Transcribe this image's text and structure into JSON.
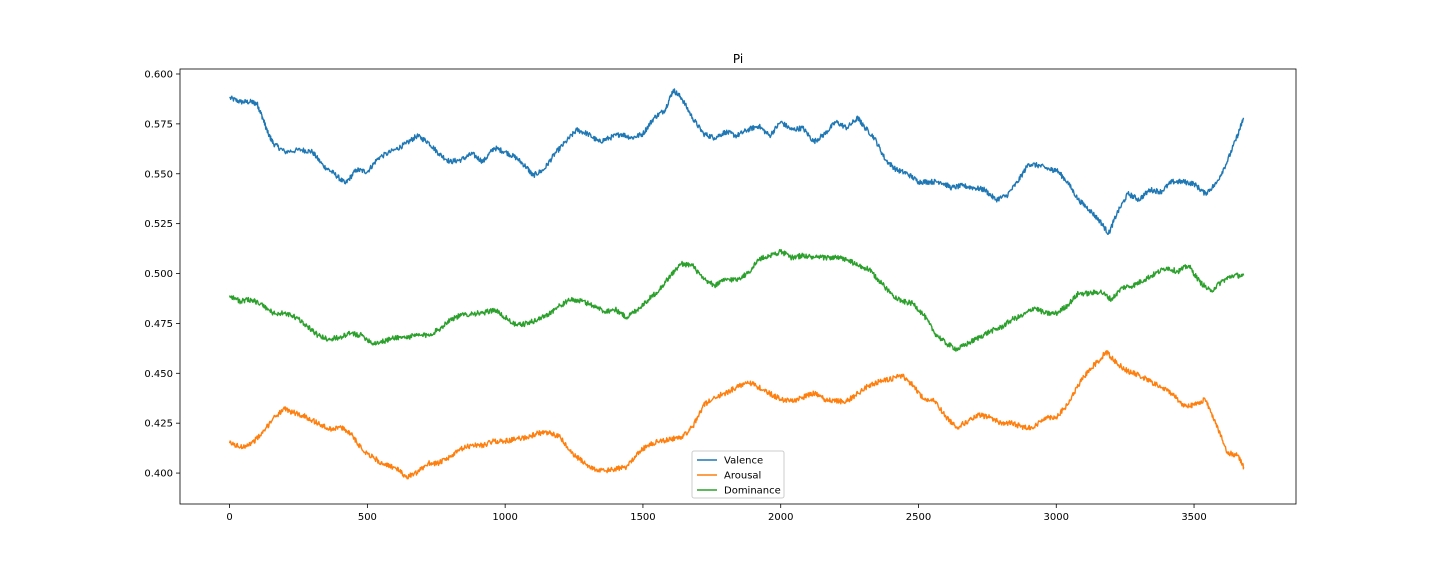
{
  "chart_data": {
    "type": "line",
    "title": "Pi",
    "xlabel": "",
    "ylabel": "",
    "xlim": [
      -180,
      3870
    ],
    "ylim": [
      0.3845,
      0.6025
    ],
    "xticks": [
      0,
      500,
      1000,
      1500,
      2000,
      2500,
      3000,
      3500
    ],
    "xtick_labels": [
      "0",
      "500",
      "1000",
      "1500",
      "2000",
      "2500",
      "3000",
      "3500"
    ],
    "yticks": [
      0.4,
      0.425,
      0.45,
      0.475,
      0.5,
      0.525,
      0.55,
      0.575,
      0.6
    ],
    "ytick_labels": [
      "0.400",
      "0.425",
      "0.450",
      "0.475",
      "0.500",
      "0.525",
      "0.550",
      "0.575",
      "0.600"
    ],
    "grid": false,
    "legend_position": "bottom-center",
    "series": [
      {
        "name": "Valence",
        "color": "#1f77b4",
        "points": [
          [
            0,
            0.588
          ],
          [
            40,
            0.586
          ],
          [
            80,
            0.586
          ],
          [
            100,
            0.585
          ],
          [
            120,
            0.578
          ],
          [
            140,
            0.57
          ],
          [
            160,
            0.565
          ],
          [
            200,
            0.561
          ],
          [
            260,
            0.562
          ],
          [
            300,
            0.561
          ],
          [
            340,
            0.554
          ],
          [
            380,
            0.55
          ],
          [
            420,
            0.545
          ],
          [
            460,
            0.552
          ],
          [
            500,
            0.551
          ],
          [
            540,
            0.558
          ],
          [
            600,
            0.562
          ],
          [
            640,
            0.565
          ],
          [
            680,
            0.569
          ],
          [
            720,
            0.566
          ],
          [
            760,
            0.56
          ],
          [
            800,
            0.556
          ],
          [
            840,
            0.557
          ],
          [
            880,
            0.56
          ],
          [
            920,
            0.556
          ],
          [
            960,
            0.563
          ],
          [
            1000,
            0.561
          ],
          [
            1040,
            0.558
          ],
          [
            1080,
            0.553
          ],
          [
            1100,
            0.549
          ],
          [
            1140,
            0.552
          ],
          [
            1180,
            0.56
          ],
          [
            1220,
            0.566
          ],
          [
            1260,
            0.572
          ],
          [
            1300,
            0.57
          ],
          [
            1340,
            0.566
          ],
          [
            1380,
            0.568
          ],
          [
            1420,
            0.57
          ],
          [
            1460,
            0.568
          ],
          [
            1500,
            0.57
          ],
          [
            1540,
            0.578
          ],
          [
            1580,
            0.582
          ],
          [
            1610,
            0.592
          ],
          [
            1640,
            0.588
          ],
          [
            1680,
            0.578
          ],
          [
            1720,
            0.57
          ],
          [
            1760,
            0.568
          ],
          [
            1800,
            0.571
          ],
          [
            1840,
            0.569
          ],
          [
            1880,
            0.572
          ],
          [
            1920,
            0.574
          ],
          [
            1960,
            0.569
          ],
          [
            2000,
            0.576
          ],
          [
            2040,
            0.572
          ],
          [
            2080,
            0.573
          ],
          [
            2120,
            0.566
          ],
          [
            2160,
            0.57
          ],
          [
            2200,
            0.576
          ],
          [
            2240,
            0.573
          ],
          [
            2280,
            0.578
          ],
          [
            2300,
            0.574
          ],
          [
            2340,
            0.568
          ],
          [
            2380,
            0.557
          ],
          [
            2420,
            0.552
          ],
          [
            2460,
            0.55
          ],
          [
            2500,
            0.546
          ],
          [
            2540,
            0.546
          ],
          [
            2580,
            0.546
          ],
          [
            2620,
            0.543
          ],
          [
            2660,
            0.544
          ],
          [
            2700,
            0.543
          ],
          [
            2740,
            0.542
          ],
          [
            2780,
            0.537
          ],
          [
            2820,
            0.539
          ],
          [
            2860,
            0.546
          ],
          [
            2900,
            0.555
          ],
          [
            2940,
            0.554
          ],
          [
            2980,
            0.552
          ],
          [
            3000,
            0.552
          ],
          [
            3040,
            0.546
          ],
          [
            3080,
            0.537
          ],
          [
            3120,
            0.532
          ],
          [
            3160,
            0.526
          ],
          [
            3190,
            0.52
          ],
          [
            3220,
            0.53
          ],
          [
            3260,
            0.54
          ],
          [
            3300,
            0.537
          ],
          [
            3340,
            0.542
          ],
          [
            3380,
            0.541
          ],
          [
            3420,
            0.546
          ],
          [
            3460,
            0.546
          ],
          [
            3500,
            0.545
          ],
          [
            3540,
            0.54
          ],
          [
            3580,
            0.545
          ],
          [
            3620,
            0.556
          ],
          [
            3660,
            0.57
          ],
          [
            3680,
            0.578
          ]
        ]
      },
      {
        "name": "Arousal",
        "color": "#ff7f0e",
        "points": [
          [
            0,
            0.415
          ],
          [
            40,
            0.413
          ],
          [
            80,
            0.415
          ],
          [
            120,
            0.42
          ],
          [
            160,
            0.428
          ],
          [
            200,
            0.432
          ],
          [
            240,
            0.43
          ],
          [
            280,
            0.428
          ],
          [
            320,
            0.425
          ],
          [
            360,
            0.422
          ],
          [
            400,
            0.423
          ],
          [
            440,
            0.42
          ],
          [
            480,
            0.412
          ],
          [
            520,
            0.408
          ],
          [
            560,
            0.404
          ],
          [
            600,
            0.403
          ],
          [
            640,
            0.398
          ],
          [
            680,
            0.4
          ],
          [
            720,
            0.405
          ],
          [
            760,
            0.405
          ],
          [
            800,
            0.408
          ],
          [
            840,
            0.412
          ],
          [
            880,
            0.414
          ],
          [
            920,
            0.414
          ],
          [
            960,
            0.416
          ],
          [
            1000,
            0.416
          ],
          [
            1040,
            0.417
          ],
          [
            1080,
            0.418
          ],
          [
            1120,
            0.42
          ],
          [
            1160,
            0.42
          ],
          [
            1200,
            0.418
          ],
          [
            1240,
            0.41
          ],
          [
            1280,
            0.406
          ],
          [
            1320,
            0.402
          ],
          [
            1360,
            0.401
          ],
          [
            1400,
            0.402
          ],
          [
            1440,
            0.403
          ],
          [
            1480,
            0.41
          ],
          [
            1520,
            0.414
          ],
          [
            1560,
            0.416
          ],
          [
            1600,
            0.417
          ],
          [
            1640,
            0.418
          ],
          [
            1680,
            0.423
          ],
          [
            1720,
            0.434
          ],
          [
            1760,
            0.438
          ],
          [
            1800,
            0.44
          ],
          [
            1840,
            0.443
          ],
          [
            1880,
            0.446
          ],
          [
            1920,
            0.443
          ],
          [
            1960,
            0.44
          ],
          [
            2000,
            0.437
          ],
          [
            2040,
            0.436
          ],
          [
            2080,
            0.438
          ],
          [
            2120,
            0.44
          ],
          [
            2160,
            0.437
          ],
          [
            2200,
            0.436
          ],
          [
            2240,
            0.436
          ],
          [
            2280,
            0.44
          ],
          [
            2320,
            0.444
          ],
          [
            2360,
            0.446
          ],
          [
            2400,
            0.447
          ],
          [
            2440,
            0.449
          ],
          [
            2480,
            0.444
          ],
          [
            2520,
            0.437
          ],
          [
            2560,
            0.436
          ],
          [
            2600,
            0.428
          ],
          [
            2640,
            0.423
          ],
          [
            2680,
            0.426
          ],
          [
            2720,
            0.429
          ],
          [
            2760,
            0.428
          ],
          [
            2800,
            0.425
          ],
          [
            2840,
            0.425
          ],
          [
            2880,
            0.423
          ],
          [
            2920,
            0.423
          ],
          [
            2960,
            0.428
          ],
          [
            3000,
            0.428
          ],
          [
            3040,
            0.434
          ],
          [
            3080,
            0.444
          ],
          [
            3120,
            0.452
          ],
          [
            3160,
            0.457
          ],
          [
            3180,
            0.461
          ],
          [
            3220,
            0.455
          ],
          [
            3260,
            0.451
          ],
          [
            3300,
            0.449
          ],
          [
            3340,
            0.446
          ],
          [
            3380,
            0.443
          ],
          [
            3420,
            0.44
          ],
          [
            3460,
            0.434
          ],
          [
            3500,
            0.434
          ],
          [
            3540,
            0.437
          ],
          [
            3580,
            0.425
          ],
          [
            3620,
            0.41
          ],
          [
            3660,
            0.409
          ],
          [
            3680,
            0.403
          ]
        ]
      },
      {
        "name": "Dominance",
        "color": "#2ca02c",
        "points": [
          [
            0,
            0.489
          ],
          [
            40,
            0.486
          ],
          [
            80,
            0.487
          ],
          [
            120,
            0.484
          ],
          [
            160,
            0.48
          ],
          [
            200,
            0.48
          ],
          [
            240,
            0.478
          ],
          [
            280,
            0.474
          ],
          [
            320,
            0.469
          ],
          [
            360,
            0.467
          ],
          [
            400,
            0.468
          ],
          [
            440,
            0.47
          ],
          [
            480,
            0.469
          ],
          [
            520,
            0.465
          ],
          [
            560,
            0.466
          ],
          [
            600,
            0.468
          ],
          [
            640,
            0.468
          ],
          [
            680,
            0.469
          ],
          [
            720,
            0.469
          ],
          [
            760,
            0.472
          ],
          [
            800,
            0.477
          ],
          [
            840,
            0.479
          ],
          [
            880,
            0.48
          ],
          [
            920,
            0.48
          ],
          [
            960,
            0.482
          ],
          [
            1000,
            0.478
          ],
          [
            1040,
            0.474
          ],
          [
            1080,
            0.475
          ],
          [
            1120,
            0.477
          ],
          [
            1160,
            0.48
          ],
          [
            1200,
            0.484
          ],
          [
            1240,
            0.487
          ],
          [
            1280,
            0.486
          ],
          [
            1320,
            0.484
          ],
          [
            1360,
            0.481
          ],
          [
            1400,
            0.482
          ],
          [
            1440,
            0.478
          ],
          [
            1480,
            0.482
          ],
          [
            1520,
            0.487
          ],
          [
            1560,
            0.492
          ],
          [
            1600,
            0.499
          ],
          [
            1640,
            0.505
          ],
          [
            1680,
            0.504
          ],
          [
            1720,
            0.497
          ],
          [
            1760,
            0.494
          ],
          [
            1800,
            0.497
          ],
          [
            1840,
            0.497
          ],
          [
            1880,
            0.5
          ],
          [
            1920,
            0.507
          ],
          [
            1960,
            0.509
          ],
          [
            2000,
            0.511
          ],
          [
            2040,
            0.508
          ],
          [
            2080,
            0.509
          ],
          [
            2120,
            0.508
          ],
          [
            2160,
            0.508
          ],
          [
            2200,
            0.508
          ],
          [
            2240,
            0.507
          ],
          [
            2280,
            0.504
          ],
          [
            2320,
            0.502
          ],
          [
            2360,
            0.496
          ],
          [
            2400,
            0.49
          ],
          [
            2440,
            0.486
          ],
          [
            2480,
            0.485
          ],
          [
            2520,
            0.479
          ],
          [
            2560,
            0.47
          ],
          [
            2600,
            0.465
          ],
          [
            2640,
            0.462
          ],
          [
            2680,
            0.465
          ],
          [
            2720,
            0.468
          ],
          [
            2760,
            0.471
          ],
          [
            2800,
            0.473
          ],
          [
            2840,
            0.477
          ],
          [
            2880,
            0.479
          ],
          [
            2920,
            0.483
          ],
          [
            2960,
            0.48
          ],
          [
            3000,
            0.48
          ],
          [
            3040,
            0.484
          ],
          [
            3080,
            0.49
          ],
          [
            3120,
            0.49
          ],
          [
            3160,
            0.491
          ],
          [
            3200,
            0.487
          ],
          [
            3240,
            0.493
          ],
          [
            3280,
            0.494
          ],
          [
            3320,
            0.497
          ],
          [
            3360,
            0.5
          ],
          [
            3400,
            0.503
          ],
          [
            3440,
            0.501
          ],
          [
            3480,
            0.504
          ],
          [
            3520,
            0.496
          ],
          [
            3560,
            0.491
          ],
          [
            3600,
            0.496
          ],
          [
            3640,
            0.499
          ],
          [
            3680,
            0.499
          ]
        ]
      }
    ]
  }
}
